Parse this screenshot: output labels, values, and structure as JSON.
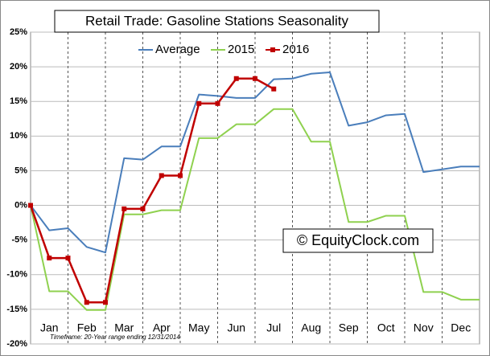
{
  "chart_data": {
    "type": "line",
    "title": "Retail Trade: Gasoline Stations Seasonality",
    "watermark": "© EquityClock.com",
    "footnote": "Timeframe: 20-Year range ending 12/31/2014",
    "x": [
      0,
      0.5,
      1,
      1.5,
      2,
      2.5,
      3,
      3.5,
      4,
      4.5,
      5,
      5.5,
      6,
      6.5,
      7,
      7.5,
      8,
      8.5,
      9,
      9.5,
      10,
      10.5,
      11,
      11.5,
      12
    ],
    "xlim": [
      0,
      12
    ],
    "xticks": [
      {
        "value": 0.5,
        "label": "Jan"
      },
      {
        "value": 1.5,
        "label": "Feb"
      },
      {
        "value": 2.5,
        "label": "Mar"
      },
      {
        "value": 3.5,
        "label": "Apr"
      },
      {
        "value": 4.5,
        "label": "May"
      },
      {
        "value": 5.5,
        "label": "Jun"
      },
      {
        "value": 6.5,
        "label": "Jul"
      },
      {
        "value": 7.5,
        "label": "Aug"
      },
      {
        "value": 8.5,
        "label": "Sep"
      },
      {
        "value": 9.5,
        "label": "Oct"
      },
      {
        "value": 10.5,
        "label": "Nov"
      },
      {
        "value": 11.5,
        "label": "Dec"
      }
    ],
    "ylim": [
      -20,
      25
    ],
    "yticks": [
      {
        "value": -20,
        "label": "-20%"
      },
      {
        "value": -15,
        "label": "-15%"
      },
      {
        "value": -10,
        "label": "-10%"
      },
      {
        "value": -5,
        "label": "-5%"
      },
      {
        "value": 0,
        "label": "0%"
      },
      {
        "value": 5,
        "label": "5%"
      },
      {
        "value": 10,
        "label": "10%"
      },
      {
        "value": 15,
        "label": "15%"
      },
      {
        "value": 20,
        "label": "20%"
      },
      {
        "value": 25,
        "label": "25%"
      }
    ],
    "grid": true,
    "legend": "top",
    "series": [
      {
        "name": "Average",
        "color": "#4a7ebb",
        "marker": false,
        "values": [
          0,
          -3.6,
          -3.3,
          -6,
          -6.8,
          6.8,
          6.6,
          8.5,
          8.5,
          16,
          15.8,
          15.5,
          15.5,
          18.2,
          18.3,
          19,
          19.2,
          11.5,
          12,
          13,
          13.2,
          4.8,
          5.2,
          5.6,
          5.6
        ]
      },
      {
        "name": "2015",
        "color": "#8fd14f",
        "marker": false,
        "values": [
          0,
          -12.4,
          -12.4,
          -15.1,
          -15.1,
          -1.3,
          -1.3,
          -0.7,
          -0.7,
          9.7,
          9.7,
          11.7,
          11.7,
          13.9,
          13.9,
          9.2,
          9.2,
          -2.4,
          -2.4,
          -1.5,
          -1.5,
          -12.5,
          -12.5,
          -13.6,
          -13.6
        ]
      },
      {
        "name": "2016",
        "color": "#c00000",
        "marker": true,
        "values": [
          0,
          -7.6,
          -7.6,
          -14,
          -14,
          -0.5,
          -0.5,
          4.3,
          4.3,
          14.7,
          14.7,
          18.3,
          18.3,
          16.8,
          null,
          null,
          null,
          null,
          null,
          null,
          null,
          null,
          null,
          null,
          null
        ]
      }
    ]
  }
}
